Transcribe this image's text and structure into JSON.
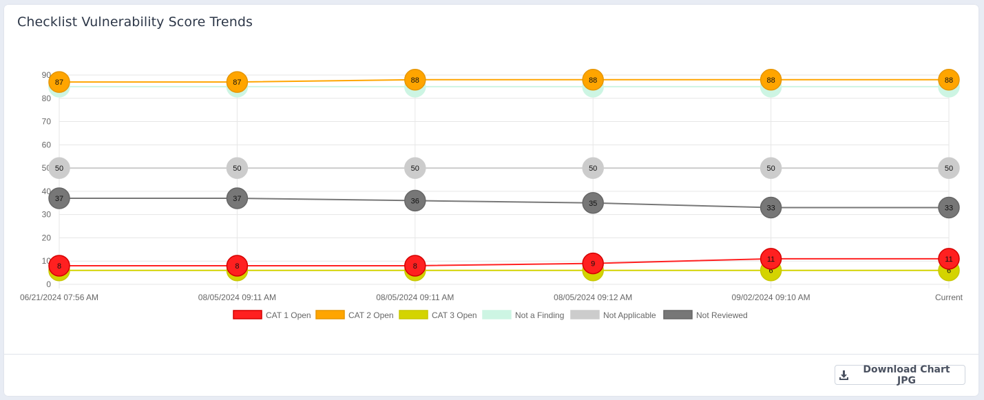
{
  "card": {
    "title": "Checklist Vulnerability Score Trends"
  },
  "download_button": {
    "label": "Download Chart JPG",
    "icon": "download-icon"
  },
  "chart_data": {
    "type": "line",
    "categories": [
      "06/21/2024 07:56 AM",
      "08/05/2024 09:11 AM",
      "08/05/2024 09:11 AM",
      "08/05/2024 09:12 AM",
      "09/02/2024 09:10 AM",
      "Current"
    ],
    "ylim": [
      0,
      90
    ],
    "yticks": [
      0,
      10,
      20,
      30,
      40,
      50,
      60,
      70,
      80,
      90
    ],
    "grid": true,
    "legend_position": "bottom",
    "series": [
      {
        "name": "CAT 1 Open",
        "color": "#ff2020",
        "border": "#d40000",
        "values": [
          8,
          8,
          8,
          9,
          11,
          11
        ]
      },
      {
        "name": "CAT 2 Open",
        "color": "#ffa500",
        "border": "#e69500",
        "values": [
          87,
          87,
          88,
          88,
          88,
          88
        ]
      },
      {
        "name": "CAT 3 Open",
        "color": "#d4d400",
        "border": "#c8c800",
        "values": [
          6,
          6,
          6,
          6,
          6,
          6
        ]
      },
      {
        "name": "Not a Finding",
        "color": "#cdf5e3",
        "border": "#cdf5e3",
        "values": [
          85,
          85,
          85,
          85,
          85,
          85
        ]
      },
      {
        "name": "Not Applicable",
        "color": "#cccccc",
        "border": "#cccccc",
        "values": [
          50,
          50,
          50,
          50,
          50,
          50
        ]
      },
      {
        "name": "Not Reviewed",
        "color": "#777777",
        "border": "#666666",
        "values": [
          37,
          37,
          36,
          35,
          33,
          33
        ]
      }
    ]
  }
}
